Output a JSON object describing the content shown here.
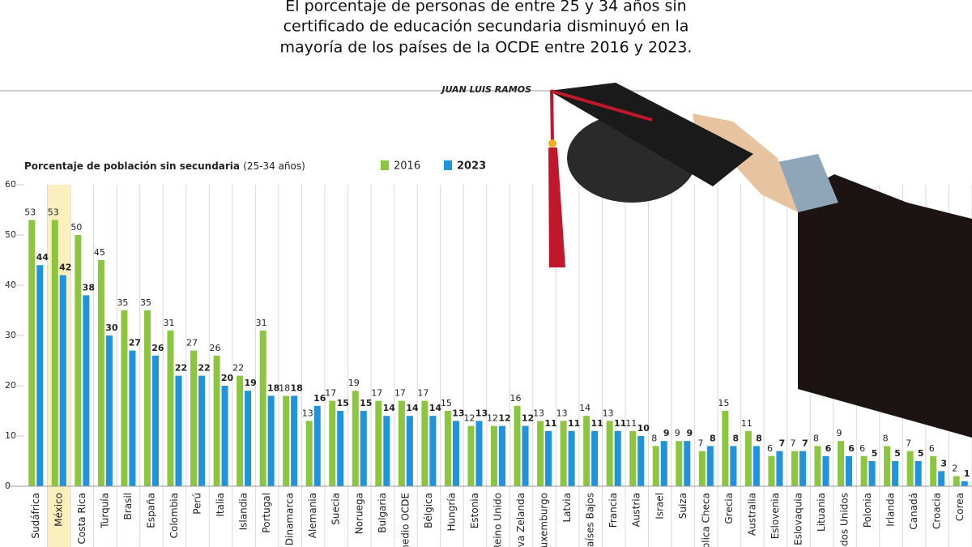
{
  "chart_data": {
    "type": "bar",
    "title_lines": [
      "El porcentaje de personas de entre 25 y 34 años sin",
      "certificado de educación secundaria disminuyó en la",
      "mayoría de los países de la OCDE entre 2016 y 2023."
    ],
    "author": "JUAN LUIS RAMOS",
    "y_label": "Porcentaje de población sin secundaria",
    "y_label_note": "(25-34 años)",
    "categories": [
      "Sudáfrica",
      "México",
      "Costa Rica",
      "Turquía",
      "Brasil",
      "España",
      "Colombia",
      "Perú",
      "Italia",
      "Islandia",
      "Portugal",
      "Dinamarca",
      "Alemania",
      "Suecia",
      "Noruega",
      "Bulgaria",
      "Promedio OCDE",
      "Bélgica",
      "Hungría",
      "Estonia",
      "Reino Unido",
      "Nueva Zelanda",
      "Luxemburgo",
      "Latvia",
      "Países Bajos",
      "Francia",
      "Austria",
      "Israel",
      "Suiza",
      "República Checa",
      "Grecia",
      "Australia",
      "Eslovenia",
      "Eslovaquia",
      "Lituania",
      "Estados Unidos",
      "Polonia",
      "Irlanda",
      "Canadá",
      "Croacia",
      "Corea"
    ],
    "highlight": "México",
    "series": [
      {
        "name": "2016",
        "color": "#8cc63f",
        "values": [
          53,
          53,
          50,
          45,
          35,
          35,
          31,
          27,
          26,
          22,
          31,
          18,
          13,
          17,
          19,
          17,
          17,
          17,
          15,
          12,
          12,
          16,
          13,
          13,
          14,
          13,
          11,
          8,
          9,
          7,
          15,
          11,
          6,
          7,
          8,
          9,
          6,
          8,
          7,
          6,
          2
        ]
      },
      {
        "name": "2023",
        "color": "#1f93dd",
        "values": [
          44,
          42,
          38,
          30,
          27,
          26,
          22,
          22,
          20,
          19,
          18,
          18,
          16,
          15,
          15,
          14,
          14,
          14,
          13,
          13,
          12,
          12,
          11,
          11,
          11,
          11,
          10,
          9,
          9,
          8,
          8,
          8,
          7,
          7,
          6,
          6,
          5,
          5,
          5,
          3,
          1
        ]
      }
    ],
    "ylim": [
      0,
      60
    ],
    "yticks": [
      0,
      10,
      20,
      30,
      40,
      50,
      60
    ],
    "grid": true
  }
}
